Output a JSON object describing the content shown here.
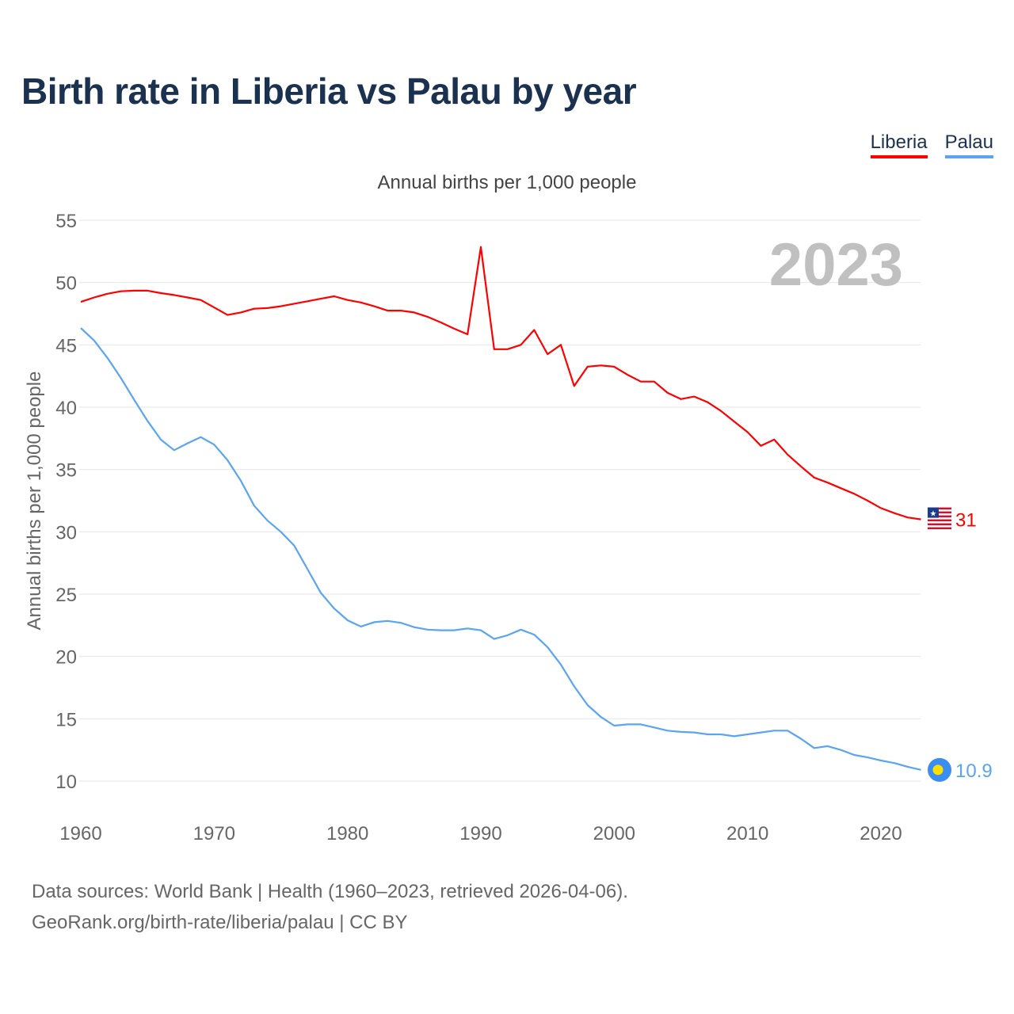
{
  "title": "Birth rate in Liberia vs Palau by year",
  "legend": [
    {
      "label": "Liberia",
      "color": "#ff0000"
    },
    {
      "label": "Palau",
      "color": "#5aa5f0"
    }
  ],
  "year_watermark": "2023",
  "source_line1": "Data sources: World Bank | Health (1960–2023, retrieved 2026-04-06).",
  "source_line2": "GeoRank.org/birth-rate/liberia/palau | CC BY",
  "chart_data": {
    "type": "line",
    "title": "Annual births per 1,000 people",
    "xlabel": "",
    "ylabel": "Annual births per 1,000 people",
    "xlim": [
      1960,
      2023
    ],
    "ylim": [
      10,
      55
    ],
    "xticks": [
      1960,
      1970,
      1980,
      1990,
      2000,
      2010,
      2020
    ],
    "yticks": [
      10,
      15,
      20,
      25,
      30,
      35,
      40,
      45,
      50,
      55
    ],
    "grid": true,
    "legend_position": "top-right",
    "x": [
      1960,
      1961,
      1962,
      1963,
      1964,
      1965,
      1966,
      1967,
      1968,
      1969,
      1970,
      1971,
      1972,
      1973,
      1974,
      1975,
      1976,
      1977,
      1978,
      1979,
      1980,
      1981,
      1982,
      1983,
      1984,
      1985,
      1986,
      1987,
      1988,
      1989,
      1990,
      1991,
      1992,
      1993,
      1994,
      1995,
      1996,
      1997,
      1998,
      1999,
      2000,
      2001,
      2002,
      2003,
      2004,
      2005,
      2006,
      2007,
      2008,
      2009,
      2010,
      2011,
      2012,
      2013,
      2014,
      2015,
      2016,
      2017,
      2018,
      2019,
      2020,
      2021,
      2022,
      2023
    ],
    "series": [
      {
        "name": "Liberia",
        "color": "#ff0000",
        "end_label": "31",
        "values": [
          48.45,
          48.8,
          49.1,
          49.3,
          49.35,
          49.35,
          49.15,
          49.0,
          48.8,
          48.6,
          48.0,
          47.4,
          47.6,
          47.9,
          47.95,
          48.1,
          48.3,
          48.5,
          48.7,
          48.9,
          48.6,
          48.4,
          48.1,
          47.75,
          47.75,
          47.6,
          47.25,
          46.8,
          46.3,
          45.85,
          52.85,
          44.65,
          44.65,
          45.0,
          46.2,
          44.25,
          45.0,
          41.7,
          43.25,
          43.35,
          43.25,
          42.6,
          42.05,
          42.05,
          41.15,
          40.65,
          40.85,
          40.4,
          39.7,
          38.85,
          38.0,
          36.9,
          37.4,
          36.2,
          35.25,
          34.35,
          33.95,
          33.5,
          33.05,
          32.5,
          31.9,
          31.5,
          31.15,
          31.0
        ]
      },
      {
        "name": "Palau",
        "color": "#5aa5f0",
        "end_label": "10.9",
        "values": [
          46.35,
          45.35,
          43.95,
          42.35,
          40.6,
          38.9,
          37.4,
          36.55,
          37.1,
          37.6,
          37.0,
          35.75,
          34.1,
          32.1,
          30.9,
          30.0,
          28.9,
          27.0,
          25.1,
          23.85,
          22.9,
          22.4,
          22.75,
          22.85,
          22.7,
          22.35,
          22.15,
          22.1,
          22.1,
          22.25,
          22.1,
          21.4,
          21.7,
          22.15,
          21.75,
          20.75,
          19.35,
          17.6,
          16.1,
          15.15,
          14.45,
          14.55,
          14.55,
          14.3,
          14.05,
          13.95,
          13.9,
          13.75,
          13.75,
          13.6,
          13.75,
          13.9,
          14.05,
          14.05,
          13.4,
          12.65,
          12.8,
          12.5,
          12.1,
          11.9,
          11.65,
          11.45,
          11.15,
          10.9
        ]
      }
    ]
  }
}
